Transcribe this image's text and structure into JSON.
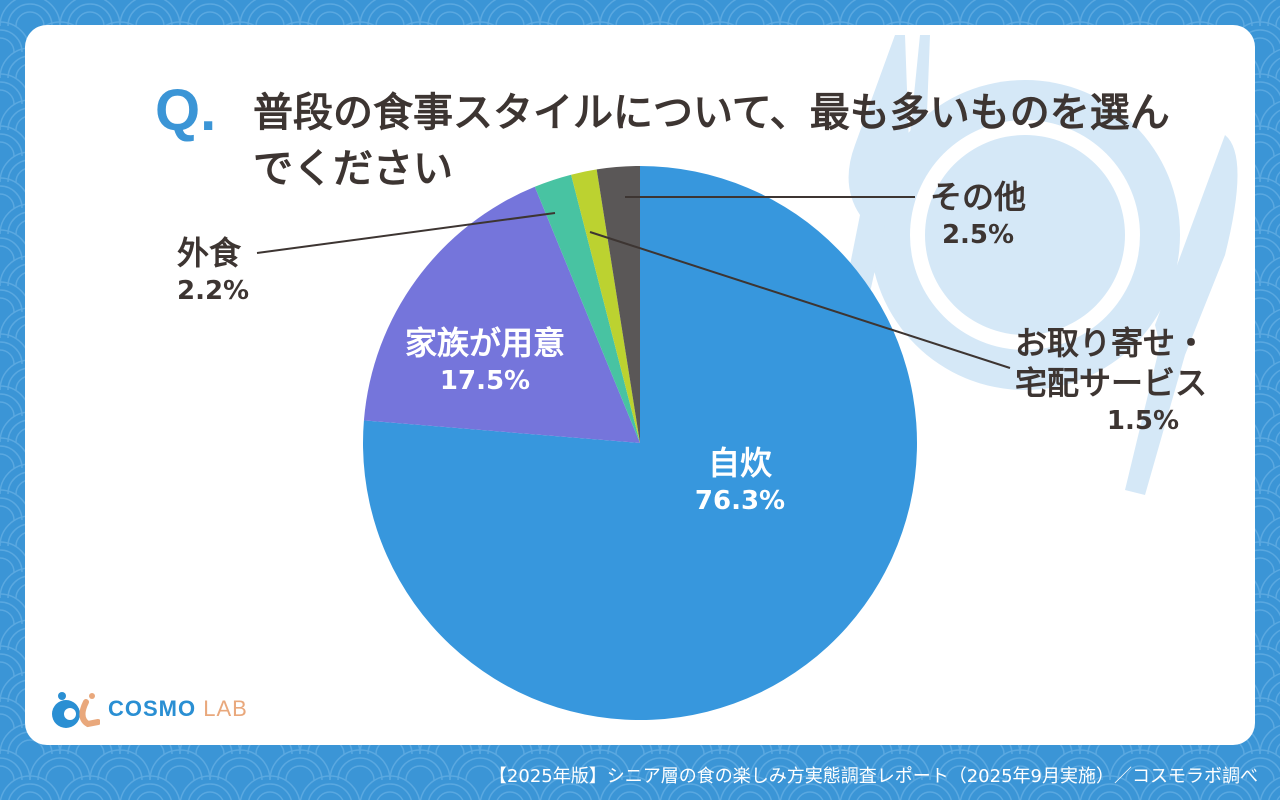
{
  "question": {
    "mark": "Q.",
    "text": "普段の食事スタイルについて、最も多いものを選んでください"
  },
  "chart_data": {
    "type": "pie",
    "start": "12 o'clock, clockwise",
    "slices": [
      {
        "label": "自炊",
        "value": 76.3,
        "pct_label": "76.3%",
        "color": "#3797dd"
      },
      {
        "label": "家族が用意",
        "value": 17.5,
        "pct_label": "17.5%",
        "color": "#7575db"
      },
      {
        "label": "外食",
        "value": 2.2,
        "pct_label": "2.2%",
        "color": "#48c3a2"
      },
      {
        "label": "お取り寄せ・宅配サービス",
        "value": 1.5,
        "pct_label": "1.5%",
        "color": "#bcd230"
      },
      {
        "label": "その他",
        "value": 2.5,
        "pct_label": "2.5%",
        "color": "#5a5757"
      }
    ]
  },
  "labels": {
    "jisui": {
      "name": "自炊",
      "pct": "76.3%"
    },
    "kazoku": {
      "name": "家族が用意",
      "pct": "17.5%"
    },
    "gaishoku": {
      "name": "外食",
      "pct": "2.2%"
    },
    "otoriyose": {
      "name1": "お取り寄せ・",
      "name2": "宅配サービス",
      "pct": "1.5%"
    },
    "sonota": {
      "name": "その他",
      "pct": "2.5%"
    }
  },
  "logo": {
    "main": "COSMO",
    "sub": "LAB"
  },
  "footer": "【2025年版】シニア層の食の楽しみ方実態調査レポート（2025年9月実施）／コスモラボ調べ",
  "colors": {
    "background": "#3b95d6",
    "accent": "#3b95d6",
    "plate": "#d5e8f7"
  }
}
